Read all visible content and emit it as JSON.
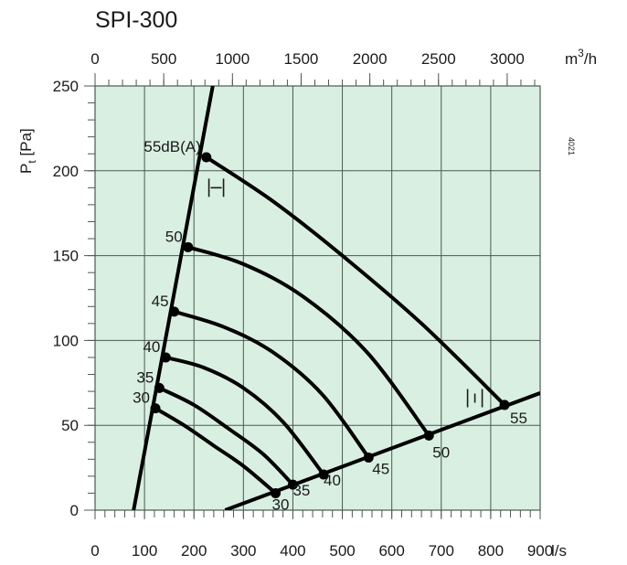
{
  "title": "SPI-300",
  "side_code": "4021",
  "colors": {
    "plot_bg": "#d9efe2",
    "grid": "#4a5a50",
    "curve": "#000000",
    "text": "#1a1a1a"
  },
  "chart_data": {
    "type": "line",
    "title": "SPI-300",
    "xlabel": "l/s",
    "x2label": "m³/h",
    "ylabel": "Pt [Pa]",
    "xlim": [
      0,
      900
    ],
    "x2lim": [
      0,
      3240
    ],
    "ylim": [
      0,
      250
    ],
    "grid": true,
    "x_ticks": [
      0,
      100,
      200,
      300,
      400,
      500,
      600,
      700,
      800,
      900
    ],
    "x2_ticks": [
      0,
      500,
      1000,
      1500,
      2000,
      2500,
      3000
    ],
    "y_ticks": [
      0,
      50,
      100,
      150,
      200,
      250
    ],
    "boundary_lines": [
      {
        "name": "min-damper-line",
        "points": [
          [
            78,
            0
          ],
          [
            238,
            250
          ]
        ]
      },
      {
        "name": "max-damper-line",
        "points": [
          [
            263,
            0
          ],
          [
            900,
            69
          ]
        ]
      }
    ],
    "series": [
      {
        "name": "30 dB(A)",
        "label": "30",
        "points": [
          [
            122,
            60
          ],
          [
            180,
            50
          ],
          [
            240,
            38
          ],
          [
            300,
            26
          ],
          [
            365,
            10
          ]
        ]
      },
      {
        "name": "35 dB(A)",
        "label": "35",
        "points": [
          [
            130,
            72
          ],
          [
            200,
            62
          ],
          [
            270,
            48
          ],
          [
            340,
            33
          ],
          [
            400,
            15
          ]
        ]
      },
      {
        "name": "40 dB(A)",
        "label": "40",
        "points": [
          [
            143,
            90
          ],
          [
            220,
            84
          ],
          [
            300,
            72
          ],
          [
            380,
            52
          ],
          [
            462,
            21
          ]
        ]
      },
      {
        "name": "45 dB(A)",
        "label": "45",
        "points": [
          [
            160,
            117
          ],
          [
            260,
            108
          ],
          [
            360,
            93
          ],
          [
            460,
            68
          ],
          [
            553,
            31
          ]
        ]
      },
      {
        "name": "50 dB(A)",
        "label": "50",
        "points": [
          [
            188,
            155
          ],
          [
            300,
            145
          ],
          [
            420,
            126
          ],
          [
            550,
            93
          ],
          [
            675,
            44
          ]
        ]
      },
      {
        "name": "55 dB(A)",
        "label": "55dB(A)",
        "points": [
          [
            225,
            208
          ],
          [
            360,
            182
          ],
          [
            500,
            150
          ],
          [
            660,
            110
          ],
          [
            828,
            62
          ]
        ]
      }
    ],
    "annotations": [
      {
        "text": "|↔|",
        "near": [
          245,
          190
        ],
        "meaning": "damper fully open"
      },
      {
        "text": "|↕|",
        "near": [
          768,
          66
        ],
        "meaning": "damper position"
      }
    ],
    "end_labels": [
      "30",
      "35",
      "40",
      "45",
      "50",
      "55"
    ]
  }
}
